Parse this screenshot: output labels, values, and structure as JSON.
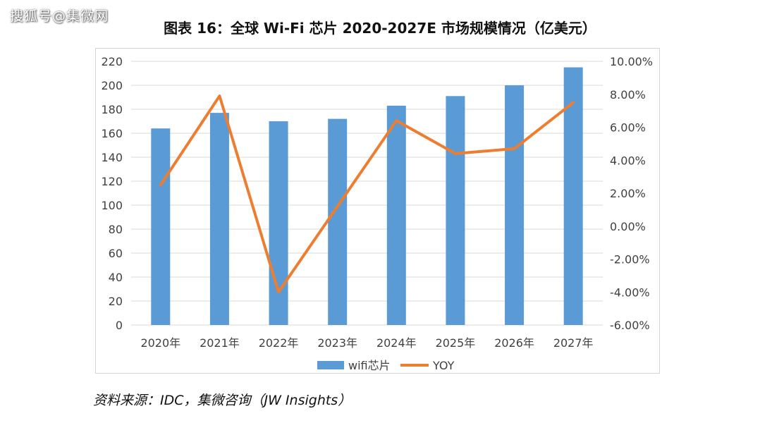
{
  "watermark": "搜狐号@集微网",
  "source": "资料来源：IDC，集微咨询（JW Insights）",
  "chart_data": {
    "type": "bar",
    "title": "图表 16：全球 Wi-Fi 芯片 2020-2027E 市场规模情况（亿美元）",
    "categories": [
      "2020年",
      "2021年",
      "2022年",
      "2023年",
      "2024年",
      "2025年",
      "2026年",
      "2027年"
    ],
    "series": [
      {
        "name": "wifi芯片",
        "type": "bar",
        "axis": "left",
        "color": "#5B9BD5",
        "values": [
          164,
          177,
          170,
          172,
          183,
          191,
          200,
          215
        ]
      },
      {
        "name": "YOY",
        "type": "line",
        "axis": "right",
        "color": "#ED7D31",
        "values": [
          2.5,
          7.9,
          -4.0,
          1.2,
          6.4,
          4.4,
          4.7,
          7.5
        ]
      }
    ],
    "ylim": [
      0,
      220
    ],
    "yticks": [
      "0",
      "20",
      "40",
      "60",
      "80",
      "100",
      "120",
      "140",
      "160",
      "180",
      "200",
      "220"
    ],
    "y2lim": [
      -6,
      10
    ],
    "y2ticks": [
      "-6.00%",
      "-4.00%",
      "-2.00%",
      "0.00%",
      "2.00%",
      "4.00%",
      "6.00%",
      "8.00%",
      "10.00%"
    ],
    "legend": "bottom"
  }
}
